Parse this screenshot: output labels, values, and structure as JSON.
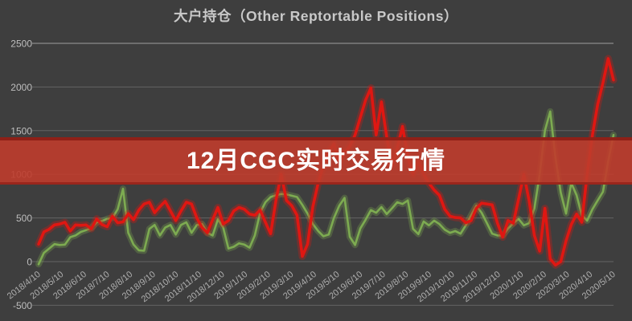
{
  "page": {
    "background": "#3e3e3e"
  },
  "header": {
    "title": "大户持仓（Other Reptortable Positions）"
  },
  "overlay_banner": {
    "text": "12月CGC实时交易行情",
    "background": "#bf3c2c",
    "text_color": "#ffffff"
  },
  "chart_data": {
    "type": "line",
    "title": "大户持仓（Other Reptortable Positions）",
    "x_start": "2018/4/10",
    "x_interval": "weekly",
    "x_tick_labels": [
      "2018/4/10",
      "2018/5/10",
      "2018/6/10",
      "2018/7/10",
      "2018/8/10",
      "2018/9/10",
      "2018/10/10",
      "2018/11/10",
      "2018/12/10",
      "2019/1/10",
      "2019/2/10",
      "2019/3/10",
      "2019/4/10",
      "2019/5/10",
      "2019/6/10",
      "2019/7/10",
      "2019/8/10",
      "2019/9/10",
      "2019/10/10",
      "2019/11/10",
      "2019/12/10",
      "2020/1/10",
      "2020/2/10",
      "2020/3/10",
      "2020/4/10",
      "2020/5/10"
    ],
    "y_ticks": [
      2500,
      2000,
      1500,
      1000,
      500,
      0,
      -500
    ],
    "ylim": [
      -500,
      2600
    ],
    "grid": "horizontal",
    "legend": "none",
    "background": "#3e3e3e",
    "series": [
      {
        "name": "green-series",
        "color": "#7dab51",
        "values": [
          -30,
          100,
          150,
          200,
          190,
          195,
          280,
          300,
          340,
          360,
          385,
          450,
          465,
          490,
          500,
          600,
          835,
          330,
          195,
          130,
          125,
          375,
          420,
          300,
          390,
          420,
          310,
          420,
          450,
          330,
          420,
          430,
          330,
          300,
          485,
          390,
          150,
          170,
          210,
          195,
          160,
          300,
          560,
          680,
          740,
          760,
          775,
          770,
          755,
          740,
          650,
          550,
          430,
          350,
          290,
          310,
          500,
          640,
          730,
          285,
          190,
          380,
          480,
          590,
          560,
          625,
          545,
          610,
          680,
          660,
          700,
          375,
          315,
          460,
          415,
          470,
          430,
          365,
          330,
          350,
          320,
          415,
          530,
          640,
          560,
          440,
          320,
          300,
          300,
          380,
          440,
          490,
          415,
          440,
          610,
          1000,
          1500,
          1720,
          1190,
          790,
          550,
          900,
          760,
          530,
          470,
          600,
          700,
          800,
          1150,
          1450
        ]
      },
      {
        "name": "red-series",
        "color": "#df1712",
        "values": [
          200,
          340,
          370,
          420,
          430,
          450,
          350,
          420,
          415,
          420,
          375,
          490,
          425,
          400,
          520,
          445,
          455,
          550,
          480,
          590,
          660,
          680,
          560,
          630,
          690,
          580,
          470,
          580,
          680,
          660,
          500,
          390,
          330,
          480,
          620,
          430,
          470,
          580,
          620,
          600,
          545,
          530,
          590,
          450,
          320,
          700,
          1000,
          700,
          640,
          530,
          60,
          200,
          630,
          900,
          1100,
          1250,
          1350,
          1150,
          1250,
          1320,
          1450,
          1650,
          1850,
          1990,
          1450,
          1830,
          1430,
          1100,
          1300,
          1550,
          1200,
          1000,
          1150,
          1000,
          900,
          820,
          760,
          600,
          520,
          505,
          500,
          445,
          470,
          610,
          670,
          660,
          650,
          440,
          280,
          470,
          440,
          715,
          1000,
          700,
          300,
          120,
          610,
          30,
          -40,
          0,
          240,
          425,
          545,
          450,
          1000,
          1450,
          1800,
          2050,
          2325,
          2080
        ]
      }
    ]
  }
}
